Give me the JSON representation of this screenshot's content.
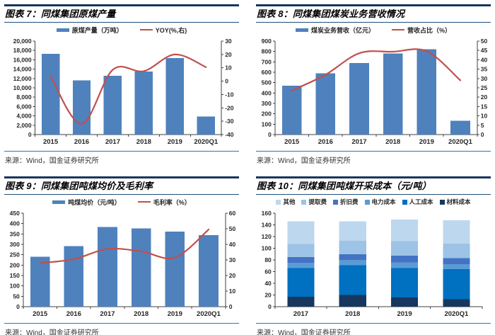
{
  "colors": {
    "bar_blue": "#4f81bd",
    "line_red": "#c0504d",
    "axis": "#404040",
    "rule_dark": "#17365d",
    "rule_light": "#2e75b6"
  },
  "chart_data": [
    {
      "type": "bar",
      "title": "图表 7：同煤集团原煤产量",
      "source": "来源：Wind，国金证券研究所",
      "categories": [
        "2015",
        "2016",
        "2017",
        "2018",
        "2019",
        "2020Q1"
      ],
      "series": [
        {
          "name": "原煤产量（万吨）",
          "kind": "bar",
          "axis": "left",
          "color": "#4f81bd",
          "values": [
            17300,
            11600,
            12600,
            13500,
            16400,
            3900
          ]
        },
        {
          "name": "YOY(%,右)",
          "kind": "line",
          "axis": "right",
          "color": "#c0504d",
          "values": [
            3.5,
            -32,
            8.5,
            7.5,
            20,
            10.5
          ]
        }
      ],
      "left_axis": {
        "min": 0,
        "max": 20000,
        "step": 2000,
        "thousands": true
      },
      "right_axis": {
        "min": -40,
        "max": 30,
        "step": 10
      },
      "legend_position": "top",
      "grid": false
    },
    {
      "type": "bar",
      "title": "图表 8：同煤集团煤炭业务营收情况",
      "source": "来源：Wind，国金证券研究所",
      "categories": [
        "2015",
        "2016",
        "2017",
        "2018",
        "2019",
        "2020Q1"
      ],
      "series": [
        {
          "name": "煤炭业务营收（亿元）",
          "kind": "bar",
          "axis": "left",
          "color": "#4f81bd",
          "values": [
            470,
            590,
            690,
            780,
            820,
            132
          ]
        },
        {
          "name": "营收占比（%）",
          "kind": "line",
          "axis": "right",
          "color": "#c0504d",
          "values": [
            23.5,
            32,
            43.5,
            44.3,
            44.6,
            29
          ]
        }
      ],
      "left_axis": {
        "min": 0,
        "max": 900,
        "step": 100
      },
      "right_axis": {
        "min": 0,
        "max": 50,
        "step": 5
      },
      "legend_position": "top",
      "grid": false
    },
    {
      "type": "bar",
      "title": "图表 9：同煤集团吨煤均价及毛利率",
      "source": "来源：Wind，国金证券研究所",
      "categories": [
        "2015",
        "2016",
        "2017",
        "2018",
        "2019",
        "2020Q1"
      ],
      "series": [
        {
          "name": "吨煤均价（元/吨）",
          "kind": "bar",
          "axis": "left",
          "color": "#4f81bd",
          "values": [
            241,
            292,
            383,
            377,
            362,
            344
          ]
        },
        {
          "name": "毛利率（%）",
          "kind": "line",
          "axis": "right",
          "color": "#c0504d",
          "values": [
            28,
            30.5,
            37,
            35.5,
            31.5,
            49.5
          ]
        }
      ],
      "left_axis": {
        "min": 0,
        "max": 450,
        "step": 50
      },
      "right_axis": {
        "min": 0,
        "max": 60,
        "step": 10
      },
      "legend_position": "top",
      "grid": false
    },
    {
      "type": "bar",
      "stacked": true,
      "title": "图表 10：同煤集团吨煤开采成本（元/吨）",
      "source": "来源：Wind，国金证券研究所",
      "categories": [
        "2017",
        "2018",
        "2019",
        "2020Q1"
      ],
      "series": [
        {
          "name": "材料成本",
          "kind": "bar",
          "color": "#17375e",
          "values": [
            17,
            20,
            16,
            13
          ]
        },
        {
          "name": "人工成本",
          "kind": "bar",
          "color": "#0070c0",
          "values": [
            49,
            51,
            50,
            51
          ]
        },
        {
          "name": "电力成本",
          "kind": "bar",
          "color": "#5b9bd5",
          "values": [
            9,
            9,
            10,
            9
          ]
        },
        {
          "name": "折旧费",
          "kind": "bar",
          "color": "#4472c4",
          "values": [
            10,
            10,
            11,
            10
          ]
        },
        {
          "name": "提取费",
          "kind": "bar",
          "color": "#9dc3e6",
          "values": [
            22,
            23,
            25,
            25
          ]
        },
        {
          "name": "其他",
          "kind": "bar",
          "color": "#bdd7ee",
          "values": [
            39,
            33,
            37,
            40
          ]
        }
      ],
      "legend_order": [
        "其他",
        "提取费",
        "折旧费",
        "电力成本",
        "人工成本",
        "材料成本"
      ],
      "left_axis": {
        "min": 0,
        "max": 160,
        "step": 20
      },
      "legend_position": "top",
      "grid": false
    }
  ]
}
